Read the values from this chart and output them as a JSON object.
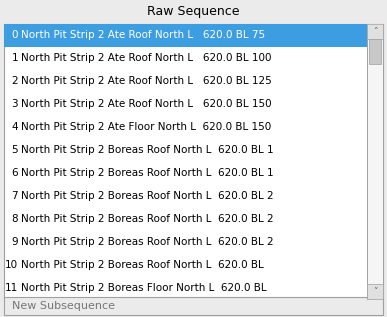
{
  "title": "Raw Sequence",
  "footer": "New Subsequence",
  "rows": [
    {
      "idx": 0,
      "label": "0",
      "text": "North Pit Strip 2 Ate Roof North L   620.0 BL 75",
      "selected": true
    },
    {
      "idx": 1,
      "label": "1",
      "text": "North Pit Strip 2 Ate Roof North L   620.0 BL 100",
      "selected": false
    },
    {
      "idx": 2,
      "label": "2",
      "text": "North Pit Strip 2 Ate Roof North L   620.0 BL 125",
      "selected": false
    },
    {
      "idx": 3,
      "label": "3",
      "text": "North Pit Strip 2 Ate Roof North L   620.0 BL 150",
      "selected": false
    },
    {
      "idx": 4,
      "label": "4",
      "text": "North Pit Strip 2 Ate Floor North L  620.0 BL 150",
      "selected": false
    },
    {
      "idx": 5,
      "label": "5",
      "text": "North Pit Strip 2 Boreas Roof North L  620.0 BL 1",
      "selected": false
    },
    {
      "idx": 6,
      "label": "6",
      "text": "North Pit Strip 2 Boreas Roof North L  620.0 BL 1",
      "selected": false
    },
    {
      "idx": 7,
      "label": "7",
      "text": "North Pit Strip 2 Boreas Roof North L  620.0 BL 2",
      "selected": false
    },
    {
      "idx": 8,
      "label": "8",
      "text": "North Pit Strip 2 Boreas Roof North L  620.0 BL 2",
      "selected": false
    },
    {
      "idx": 9,
      "label": "9",
      "text": "North Pit Strip 2 Boreas Roof North L  620.0 BL 2",
      "selected": false
    },
    {
      "idx": 10,
      "label": "10",
      "text": "North Pit Strip 2 Boreas Roof North L  620.0 BL",
      "selected": false
    },
    {
      "idx": 11,
      "label": "11",
      "text": "North Pit Strip 2 Boreas Floor North L  620.0 BL",
      "selected": false
    }
  ],
  "bg_color": "#ebebeb",
  "panel_bg": "#ffffff",
  "selected_color": "#3c9de0",
  "selected_text_color": "#ffffff",
  "normal_text_color": "#000000",
  "border_color": "#a0a0a0",
  "scrollbar_color": "#c8c8c8",
  "scrollbar_bg": "#f5f5f5",
  "scrollbar_btn_bg": "#e0e0e0",
  "title_fontsize": 9,
  "row_fontsize": 7.5,
  "footer_fontsize": 8
}
